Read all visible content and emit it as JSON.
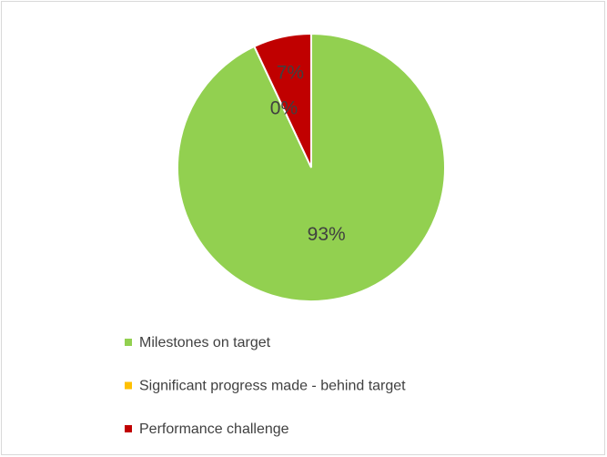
{
  "chart_data": {
    "type": "pie",
    "categories": [
      "Milestones on target",
      "Significant progress made - behind target",
      "Performance challenge"
    ],
    "values": [
      93,
      0,
      7
    ],
    "value_labels": [
      "93%",
      "0%",
      "7%"
    ],
    "colors": [
      "#92d050",
      "#ffc000",
      "#c00000"
    ],
    "legend": "bottom"
  }
}
